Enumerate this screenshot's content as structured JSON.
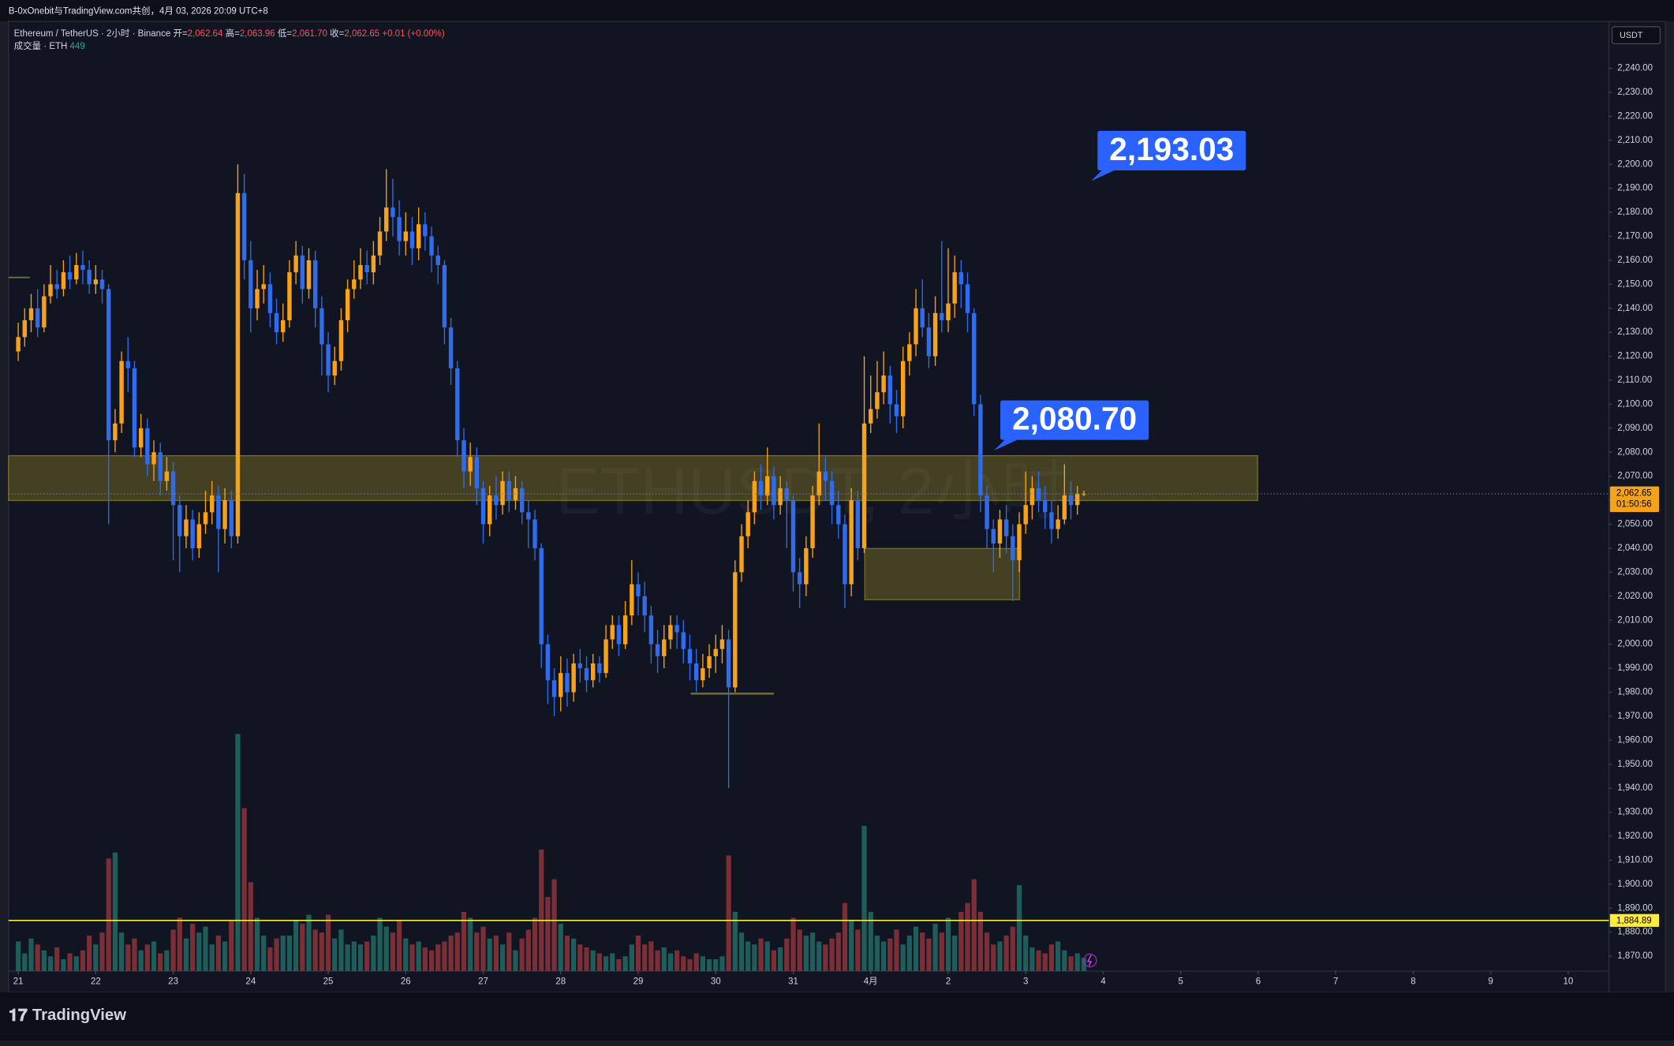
{
  "header": {
    "title": "B-0xOnebit与TradingView.com共创，4月 03, 2026 20:09 UTC+8",
    "logo": "TradingView"
  },
  "chart_data": {
    "type": "candlestick",
    "symbol": "Ethereum / TetherUS · 2小时 · Binance",
    "watermark": "ETHUSDT, 2小时",
    "currency": "USDT",
    "ohlc_labels": [
      {
        "label": "开=",
        "value": "2,062.64"
      },
      {
        "label": "高=",
        "value": "2,063.96"
      },
      {
        "label": "低=",
        "value": "2,061.70"
      },
      {
        "label": "收=",
        "value": "2,062.65"
      }
    ],
    "change": "+0.01 (+0.00%)",
    "volume_label": "成交量 · ETH",
    "colors": {
      "up": "#f7a21b",
      "down": "#2f6bea",
      "volume_up": "#1f5d5a",
      "volume_down": "#7a2f36"
    },
    "grid": false,
    "open": [
      2122,
      2128,
      2135,
      2140,
      2132,
      2145,
      2150,
      2148,
      2155,
      2152,
      2158,
      2156,
      2150,
      2152,
      2148,
      2085,
      2092,
      2118,
      2115,
      2082,
      2090,
      2075,
      2080,
      2068,
      2072,
      2058,
      2045,
      2052,
      2040,
      2050,
      2055,
      2062,
      2048,
      2060,
      2045,
      2188,
      2160,
      2140,
      2148,
      2150,
      2138,
      2130,
      2135,
      2155,
      2162,
      2148,
      2160,
      2140,
      2125,
      2112,
      2118,
      2135,
      2148,
      2152,
      2158,
      2155,
      2162,
      2172,
      2182,
      2178,
      2168,
      2172,
      2165,
      2175,
      2170,
      2162,
      2158,
      2132,
      2115,
      2085,
      2072,
      2078,
      2065,
      2050,
      2062,
      2058,
      2068,
      2060,
      2065,
      2055,
      2052,
      2040,
      2000,
      1985,
      1978,
      1988,
      1980,
      1992,
      1990,
      1985,
      1992,
      1988,
      2002,
      2008,
      2000,
      2012,
      2025,
      2020,
      2012,
      2000,
      1995,
      2002,
      2008,
      2005,
      1998,
      1992,
      1985,
      1990,
      1995,
      1998,
      2002,
      1982,
      2030,
      2045,
      2055,
      2068,
      2062,
      2070,
      2058,
      2065,
      2060,
      2030,
      2025,
      2040,
      2062,
      2072,
      2068,
      2058,
      2050,
      2025,
      2060,
      2040,
      2092,
      2098,
      2105,
      2112,
      2100,
      2095,
      2118,
      2125,
      2140,
      2132,
      2120,
      2138,
      2135,
      2142,
      2155,
      2150,
      2138,
      2100,
      2062,
      2048,
      2042,
      2052,
      2045,
      2035,
      2050,
      2058,
      2065,
      2060,
      2055,
      2048,
      2052,
      2062,
      2058,
      2062.64
    ],
    "close": [
      2128,
      2135,
      2140,
      2132,
      2145,
      2150,
      2148,
      2155,
      2152,
      2158,
      2156,
      2150,
      2152,
      2148,
      2085,
      2092,
      2118,
      2115,
      2082,
      2090,
      2075,
      2080,
      2068,
      2072,
      2058,
      2045,
      2052,
      2040,
      2050,
      2055,
      2062,
      2048,
      2060,
      2045,
      2188,
      2160,
      2140,
      2148,
      2150,
      2138,
      2130,
      2135,
      2155,
      2162,
      2148,
      2160,
      2140,
      2125,
      2112,
      2118,
      2135,
      2148,
      2152,
      2158,
      2155,
      2162,
      2172,
      2182,
      2178,
      2168,
      2172,
      2165,
      2175,
      2170,
      2162,
      2158,
      2132,
      2115,
      2085,
      2072,
      2078,
      2065,
      2050,
      2062,
      2058,
      2068,
      2060,
      2065,
      2055,
      2052,
      2040,
      2000,
      1985,
      1978,
      1988,
      1980,
      1992,
      1990,
      1985,
      1992,
      1988,
      2002,
      2008,
      2000,
      2012,
      2025,
      2020,
      2012,
      2000,
      1995,
      2002,
      2008,
      2005,
      1998,
      1992,
      1985,
      1990,
      1995,
      1998,
      2002,
      1982,
      2030,
      2045,
      2055,
      2068,
      2062,
      2070,
      2058,
      2065,
      2060,
      2030,
      2025,
      2040,
      2062,
      2072,
      2068,
      2058,
      2050,
      2025,
      2060,
      2040,
      2092,
      2098,
      2105,
      2112,
      2100,
      2095,
      2118,
      2125,
      2140,
      2132,
      2120,
      2138,
      2135,
      2142,
      2155,
      2150,
      2138,
      2100,
      2062,
      2048,
      2042,
      2052,
      2045,
      2035,
      2050,
      2058,
      2065,
      2060,
      2055,
      2048,
      2052,
      2062,
      2058,
      2062.64,
      2062.65
    ],
    "high": [
      2134,
      2140,
      2146,
      2148,
      2150,
      2158,
      2156,
      2160,
      2162,
      2163,
      2164,
      2160,
      2158,
      2156,
      2150,
      2098,
      2122,
      2128,
      2118,
      2096,
      2094,
      2085,
      2084,
      2078,
      2076,
      2062,
      2058,
      2056,
      2055,
      2064,
      2068,
      2066,
      2065,
      2064,
      2200,
      2196,
      2168,
      2156,
      2158,
      2155,
      2144,
      2142,
      2160,
      2168,
      2166,
      2165,
      2164,
      2145,
      2130,
      2124,
      2140,
      2152,
      2160,
      2165,
      2164,
      2168,
      2178,
      2198,
      2194,
      2185,
      2180,
      2178,
      2182,
      2180,
      2174,
      2166,
      2160,
      2136,
      2118,
      2090,
      2084,
      2082,
      2068,
      2066,
      2070,
      2072,
      2072,
      2070,
      2068,
      2060,
      2056,
      2042,
      2004,
      1990,
      1995,
      1994,
      1996,
      1998,
      1995,
      1996,
      1995,
      2008,
      2012,
      2012,
      2018,
      2035,
      2030,
      2026,
      2016,
      2006,
      2008,
      2012,
      2012,
      2010,
      2004,
      1998,
      1996,
      2000,
      2004,
      2008,
      2006,
      2035,
      2050,
      2060,
      2072,
      2075,
      2082,
      2074,
      2070,
      2068,
      2062,
      2036,
      2045,
      2066,
      2092,
      2078,
      2072,
      2064,
      2054,
      2065,
      2064,
      2120,
      2112,
      2118,
      2122,
      2116,
      2106,
      2124,
      2130,
      2148,
      2152,
      2138,
      2145,
      2168,
      2165,
      2162,
      2160,
      2155,
      2140,
      2104,
      2066,
      2052,
      2056,
      2058,
      2050,
      2055,
      2072,
      2070,
      2072,
      2066,
      2060,
      2058,
      2075,
      2068,
      2066,
      2063.96
    ],
    "low": [
      2118,
      2124,
      2130,
      2128,
      2130,
      2142,
      2144,
      2145,
      2148,
      2150,
      2150,
      2146,
      2146,
      2142,
      2050,
      2080,
      2088,
      2105,
      2078,
      2078,
      2070,
      2068,
      2062,
      2064,
      2035,
      2030,
      2040,
      2035,
      2036,
      2046,
      2050,
      2030,
      2042,
      2040,
      2042,
      2152,
      2130,
      2135,
      2142,
      2132,
      2125,
      2126,
      2132,
      2150,
      2142,
      2144,
      2132,
      2112,
      2105,
      2108,
      2114,
      2130,
      2144,
      2148,
      2150,
      2150,
      2158,
      2168,
      2170,
      2162,
      2162,
      2158,
      2160,
      2164,
      2155,
      2150,
      2125,
      2108,
      2078,
      2065,
      2066,
      2058,
      2042,
      2045,
      2052,
      2054,
      2055,
      2056,
      2050,
      2040,
      2035,
      1990,
      1975,
      1970,
      1972,
      1974,
      1976,
      1984,
      1980,
      1982,
      1984,
      1986,
      1998,
      1995,
      1998,
      2008,
      2012,
      2005,
      1992,
      1988,
      1990,
      1998,
      1998,
      1992,
      1985,
      1980,
      1982,
      1986,
      1988,
      1992,
      1940,
      1980,
      2026,
      2040,
      2050,
      2056,
      2058,
      2052,
      2054,
      2040,
      2022,
      2015,
      2020,
      2036,
      2058,
      2060,
      2050,
      2044,
      2015,
      2020,
      2035,
      2038,
      2088,
      2094,
      2100,
      2092,
      2088,
      2090,
      2112,
      2120,
      2128,
      2115,
      2116,
      2130,
      2130,
      2136,
      2140,
      2130,
      2095,
      2055,
      2040,
      2030,
      2036,
      2038,
      2018,
      2030,
      2046,
      2052,
      2055,
      2048,
      2042,
      2044,
      2050,
      2052,
      2054,
      2061.7
    ],
    "volume": [
      1000,
      600,
      1100,
      900,
      700,
      500,
      800,
      400,
      600,
      500,
      700,
      1200,
      900,
      1300,
      3800,
      4000,
      1300,
      900,
      1100,
      700,
      900,
      1000,
      600,
      700,
      1400,
      1800,
      1100,
      1600,
      1300,
      1500,
      900,
      1200,
      1000,
      1700,
      8000,
      5500,
      3000,
      1800,
      1200,
      800,
      1100,
      1200,
      1200,
      1700,
      1600,
      1900,
      1400,
      1300,
      1900,
      1100,
      1400,
      900,
      1000,
      900,
      1000,
      1200,
      1800,
      1500,
      1300,
      1700,
      1100,
      900,
      1000,
      800,
      700,
      900,
      1000,
      1200,
      1300,
      2000,
      1800,
      1300,
      1500,
      1100,
      1200,
      900,
      1300,
      700,
      1100,
      1400,
      1800,
      4100,
      2500,
      3100,
      1600,
      1200,
      1100,
      900,
      800,
      700,
      600,
      500,
      600,
      400,
      500,
      900,
      1200,
      900,
      1000,
      700,
      800,
      600,
      700,
      500,
      400,
      600,
      500,
      400,
      400,
      500,
      3900,
      2000,
      1300,
      1000,
      900,
      1100,
      1000,
      700,
      800,
      1100,
      1800,
      1400,
      1200,
      1300,
      1000,
      900,
      1100,
      1300,
      2300,
      1700,
      1400,
      4900,
      2000,
      1200,
      1000,
      1100,
      1400,
      900,
      1200,
      1500,
      1300,
      1100,
      1600,
      1300,
      1800,
      1200,
      2000,
      2300,
      3100,
      2000,
      1300,
      900,
      1000,
      1200,
      1500,
      2900,
      1200,
      800,
      700,
      600,
      900,
      1000,
      700,
      500,
      600,
      449
    ],
    "xlim": [
      -1.5,
      246.3
    ],
    "xticks": [
      {
        "value": 0,
        "label": "21"
      },
      {
        "value": 12,
        "label": "22"
      },
      {
        "value": 24,
        "label": "23"
      },
      {
        "value": 36,
        "label": "24"
      },
      {
        "value": 48,
        "label": "25"
      },
      {
        "value": 60,
        "label": "26"
      },
      {
        "value": 72,
        "label": "27"
      },
      {
        "value": 84,
        "label": "28"
      },
      {
        "value": 96,
        "label": "29"
      },
      {
        "value": 108,
        "label": "30"
      },
      {
        "value": 120,
        "label": "31"
      },
      {
        "value": 132,
        "label": "4月"
      },
      {
        "value": 144,
        "label": "2"
      },
      {
        "value": 156,
        "label": "3"
      },
      {
        "value": 168,
        "label": "4"
      },
      {
        "value": 180,
        "label": "5"
      },
      {
        "value": 192,
        "label": "6"
      },
      {
        "value": 204,
        "label": "7"
      },
      {
        "value": 216,
        "label": "8"
      },
      {
        "value": 228,
        "label": "9"
      },
      {
        "value": 240,
        "label": "10"
      }
    ],
    "ylim": [
      1863.77,
      2259.57
    ],
    "yticks": [
      {
        "value": 2240,
        "label": "2,240.00"
      },
      {
        "value": 2230,
        "label": "2,230.00"
      },
      {
        "value": 2220,
        "label": "2,220.00"
      },
      {
        "value": 2210,
        "label": "2,210.00"
      },
      {
        "value": 2200,
        "label": "2,200.00"
      },
      {
        "value": 2190,
        "label": "2,190.00"
      },
      {
        "value": 2180,
        "label": "2,180.00"
      },
      {
        "value": 2170,
        "label": "2,170.00"
      },
      {
        "value": 2160,
        "label": "2,160.00"
      },
      {
        "value": 2150,
        "label": "2,150.00"
      },
      {
        "value": 2140,
        "label": "2,140.00"
      },
      {
        "value": 2130,
        "label": "2,130.00"
      },
      {
        "value": 2120,
        "label": "2,120.00"
      },
      {
        "value": 2110,
        "label": "2,110.00"
      },
      {
        "value": 2100,
        "label": "2,100.00"
      },
      {
        "value": 2090,
        "label": "2,090.00"
      },
      {
        "value": 2080,
        "label": "2,080.00"
      },
      {
        "value": 2070,
        "label": "2,070.00"
      },
      {
        "value": 2060,
        "label": "2,060.00"
      },
      {
        "value": 2050,
        "label": "2,050.00"
      },
      {
        "value": 2040,
        "label": "2,040.00"
      },
      {
        "value": 2030,
        "label": "2,030.00"
      },
      {
        "value": 2020,
        "label": "2,020.00"
      },
      {
        "value": 2010,
        "label": "2,010.00"
      },
      {
        "value": 2000,
        "label": "2,000.00"
      },
      {
        "value": 1990,
        "label": "1,990.00"
      },
      {
        "value": 1980,
        "label": "1,980.00"
      },
      {
        "value": 1970,
        "label": "1,970.00"
      },
      {
        "value": 1960,
        "label": "1,960.00"
      },
      {
        "value": 1950,
        "label": "1,950.00"
      },
      {
        "value": 1940,
        "label": "1,940.00"
      },
      {
        "value": 1930,
        "label": "1,930.00"
      },
      {
        "value": 1920,
        "label": "1,920.00"
      },
      {
        "value": 1910,
        "label": "1,910.00"
      },
      {
        "value": 1900,
        "label": "1,900.00"
      },
      {
        "value": 1890,
        "label": "1,890.00"
      },
      {
        "value": 1880,
        "label": "1,880.00"
      },
      {
        "value": 1870,
        "label": "1,870.00"
      }
    ],
    "volume_lim": [
      0,
      9000
    ],
    "last_price": {
      "value": 2062.65,
      "label": "2,062.65",
      "countdown": "01:50:56",
      "color": "#f7a21b"
    },
    "hline": {
      "value": 1884.89,
      "label": "1,884.89",
      "color": "#ffeb3b"
    },
    "annotations": [
      {
        "value": 2193.03,
        "label": "2,193.03"
      },
      {
        "value": 2080.7,
        "label": "2,080.70"
      }
    ]
  }
}
